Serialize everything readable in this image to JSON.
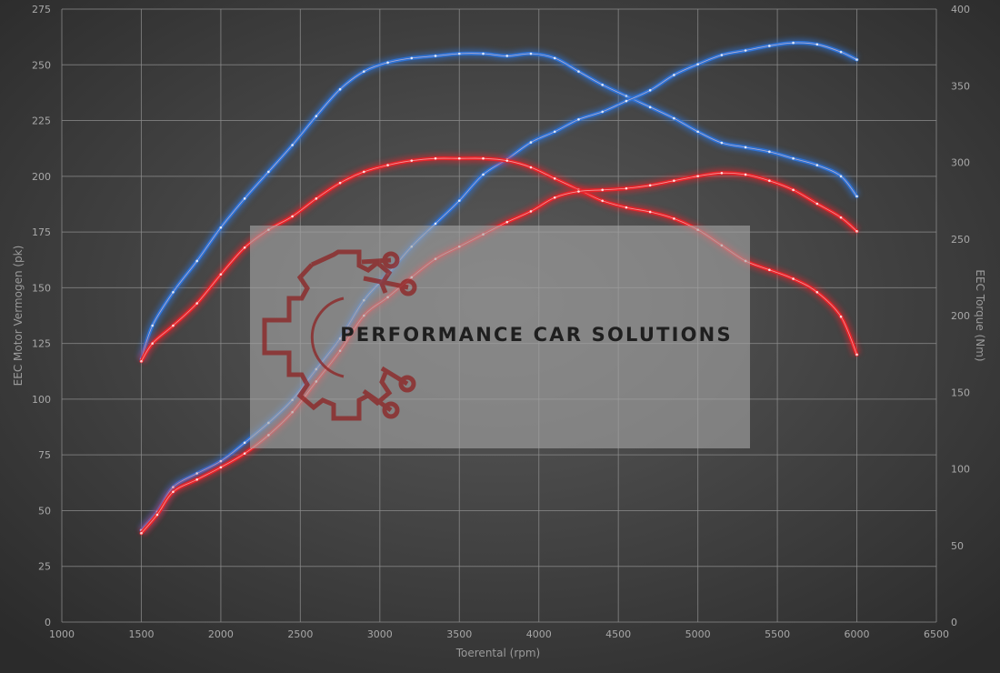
{
  "colors": {
    "background_center": "#5b5b5b",
    "background_edge": "#2b2b2b",
    "power_color": "#e8242a",
    "torque_color": "#2e73d6",
    "watermark_panel": "#a4a4a4",
    "watermark_text": "#1f1f1f",
    "logo_color": "#8e1e1e"
  },
  "watermark": {
    "text": "PERFORMANCE CAR SOLUTIONS",
    "logo_icon": "gear-circuit-logo"
  },
  "chart_data": {
    "type": "line",
    "title": "",
    "xlabel": "Toerental (rpm)",
    "ylabel_left": "EEC Motor Vermogen (pk)",
    "ylabel_right": "EEC Torque (Nm)",
    "xlim": [
      1000,
      6500
    ],
    "xticks": [
      1000,
      1500,
      2000,
      2500,
      3000,
      3500,
      4000,
      4500,
      5000,
      5500,
      6000,
      6500
    ],
    "ylim_left": [
      0,
      275
    ],
    "yticks_left": [
      0,
      25,
      50,
      75,
      100,
      125,
      150,
      175,
      200,
      225,
      250,
      275
    ],
    "ylim_right": [
      0,
      400
    ],
    "yticks_right": [
      0,
      50,
      100,
      150,
      200,
      250,
      300,
      350,
      400
    ],
    "grid": true,
    "series": [
      {
        "role": "tuned-power",
        "axis": "left",
        "color": "#2e73d6",
        "x": [
          1500,
          1570,
          1700,
          1850,
          2000,
          2150,
          2300,
          2450,
          2600,
          2750,
          2900,
          3050,
          3200,
          3350,
          3500,
          3650,
          3800,
          3950,
          4100,
          4250,
          4400,
          4550,
          4700,
          4850,
          5000,
          5150,
          5300,
          5450,
          5600,
          5750,
          5900,
          6000
        ],
        "y": [
          118,
          133,
          148,
          162,
          177,
          190,
          202,
          214,
          227,
          239,
          247,
          251,
          253,
          254,
          255,
          255,
          254,
          255,
          253,
          247,
          241,
          236,
          231,
          226,
          220,
          215,
          213,
          211,
          208,
          205,
          200,
          191
        ]
      },
      {
        "role": "tuned-torque",
        "axis": "right",
        "color": "#2e73d6",
        "x": [
          1500,
          1600,
          1700,
          1850,
          2000,
          2150,
          2300,
          2450,
          2600,
          2750,
          2900,
          3050,
          3200,
          3350,
          3500,
          3650,
          3800,
          3950,
          4100,
          4250,
          4400,
          4550,
          4700,
          4850,
          5000,
          5150,
          5300,
          5450,
          5600,
          5750,
          5900,
          6000
        ],
        "y": [
          60,
          72,
          88,
          97,
          105,
          117,
          130,
          145,
          165,
          185,
          210,
          227,
          245,
          260,
          275,
          292,
          302,
          313,
          320,
          328,
          333,
          340,
          347,
          357,
          364,
          370,
          373,
          376,
          378,
          377,
          372,
          367
        ]
      },
      {
        "role": "stock-power",
        "axis": "left",
        "color": "#e8242a",
        "x": [
          1500,
          1570,
          1700,
          1850,
          2000,
          2150,
          2300,
          2450,
          2600,
          2750,
          2900,
          3050,
          3200,
          3350,
          3500,
          3650,
          3800,
          3950,
          4100,
          4250,
          4400,
          4550,
          4700,
          4850,
          5000,
          5150,
          5300,
          5450,
          5600,
          5750,
          5900,
          6000
        ],
        "y": [
          117,
          125,
          133,
          143,
          156,
          168,
          176,
          182,
          190,
          197,
          202,
          205,
          207,
          208,
          208,
          208,
          207,
          204,
          199,
          194,
          189,
          186,
          184,
          181,
          176,
          169,
          162,
          158,
          154,
          148,
          137,
          120
        ]
      },
      {
        "role": "stock-torque",
        "axis": "right",
        "color": "#e8242a",
        "x": [
          1500,
          1600,
          1700,
          1850,
          2000,
          2150,
          2300,
          2450,
          2600,
          2750,
          2900,
          3050,
          3200,
          3350,
          3500,
          3650,
          3800,
          3950,
          4100,
          4250,
          4400,
          4550,
          4700,
          4850,
          5000,
          5150,
          5300,
          5450,
          5600,
          5750,
          5900,
          6000
        ],
        "y": [
          58,
          70,
          85,
          93,
          101,
          110,
          122,
          137,
          157,
          177,
          200,
          212,
          225,
          237,
          245,
          253,
          261,
          268,
          277,
          281,
          282,
          283,
          285,
          288,
          291,
          293,
          292,
          288,
          282,
          273,
          264,
          255
        ]
      }
    ]
  }
}
